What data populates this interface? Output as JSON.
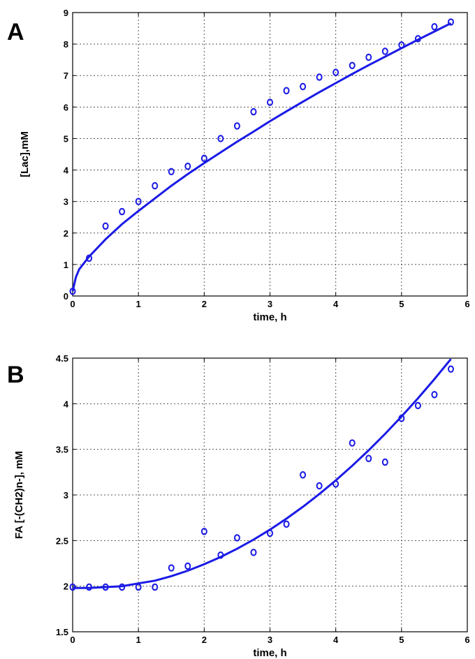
{
  "chart_data": [
    {
      "type": "scatter",
      "panel_label": "A",
      "xlabel": "time, h",
      "ylabel": "[Lac],mM",
      "xlim": [
        0,
        6
      ],
      "ylim": [
        0,
        9
      ],
      "xticks": [
        0,
        1,
        2,
        3,
        4,
        5,
        6
      ],
      "yticks": [
        0,
        1,
        2,
        3,
        4,
        5,
        6,
        7,
        8,
        9
      ],
      "grid": true,
      "series": [
        {
          "kind": "markers",
          "color": "#1a1ae6",
          "x": [
            0,
            0.25,
            0.5,
            0.75,
            1.0,
            1.25,
            1.5,
            1.75,
            2.0,
            2.25,
            2.5,
            2.75,
            3.0,
            3.25,
            3.5,
            3.75,
            4.0,
            4.25,
            4.5,
            4.75,
            5.0,
            5.25,
            5.5,
            5.75
          ],
          "y": [
            0.15,
            1.2,
            2.22,
            2.68,
            3.0,
            3.5,
            3.95,
            4.12,
            4.37,
            5.0,
            5.4,
            5.85,
            6.15,
            6.52,
            6.65,
            6.95,
            7.1,
            7.32,
            7.58,
            7.77,
            7.97,
            8.17,
            8.55,
            8.7
          ]
        },
        {
          "kind": "line",
          "color": "#1a1ae6",
          "x": [
            0,
            0.05,
            0.1,
            0.25,
            0.5,
            0.75,
            1.0,
            1.25,
            1.5,
            1.75,
            2.0,
            2.25,
            2.5,
            2.75,
            3.0,
            3.25,
            3.5,
            3.75,
            4.0,
            4.25,
            4.5,
            4.75,
            5.0,
            5.25,
            5.5,
            5.75
          ],
          "y": [
            0.15,
            0.6,
            0.85,
            1.25,
            1.8,
            2.28,
            2.7,
            3.1,
            3.5,
            3.87,
            4.22,
            4.56,
            4.9,
            5.22,
            5.55,
            5.86,
            6.17,
            6.47,
            6.76,
            7.05,
            7.33,
            7.6,
            7.87,
            8.14,
            8.4,
            8.66
          ]
        }
      ]
    },
    {
      "type": "scatter",
      "panel_label": "B",
      "xlabel": "time, h",
      "ylabel": "FA [-(CH2)n-], mM",
      "xlim": [
        0,
        6
      ],
      "ylim": [
        1.5,
        4.5
      ],
      "xticks": [
        0,
        1,
        2,
        3,
        4,
        5,
        6
      ],
      "yticks": [
        1.5,
        2,
        2.5,
        3,
        3.5,
        4,
        4.5
      ],
      "grid": true,
      "series": [
        {
          "kind": "markers",
          "color": "#1a1ae6",
          "x": [
            0,
            0.25,
            0.5,
            0.75,
            1.0,
            1.25,
            1.5,
            1.75,
            2.0,
            2.25,
            2.5,
            2.75,
            3.0,
            3.25,
            3.5,
            3.75,
            4.0,
            4.25,
            4.5,
            4.75,
            5.0,
            5.25,
            5.5,
            5.75
          ],
          "y": [
            1.99,
            1.99,
            1.99,
            1.99,
            1.99,
            1.99,
            2.2,
            2.22,
            2.6,
            2.34,
            2.53,
            2.37,
            2.58,
            2.68,
            3.22,
            3.1,
            3.12,
            3.57,
            3.4,
            3.36,
            3.84,
            3.98,
            4.1,
            4.38
          ]
        },
        {
          "kind": "line",
          "color": "#1a1ae6",
          "x": [
            0,
            0.25,
            0.5,
            0.75,
            1.0,
            1.25,
            1.5,
            1.75,
            2.0,
            2.25,
            2.5,
            2.75,
            3.0,
            3.25,
            3.5,
            3.75,
            4.0,
            4.25,
            4.5,
            4.75,
            5.0,
            5.25,
            5.5,
            5.75
          ],
          "y": [
            1.98,
            1.98,
            1.99,
            2.0,
            2.03,
            2.06,
            2.11,
            2.17,
            2.24,
            2.32,
            2.41,
            2.51,
            2.62,
            2.74,
            2.87,
            3.01,
            3.16,
            3.32,
            3.49,
            3.67,
            3.86,
            4.06,
            4.27,
            4.49
          ]
        }
      ]
    }
  ]
}
